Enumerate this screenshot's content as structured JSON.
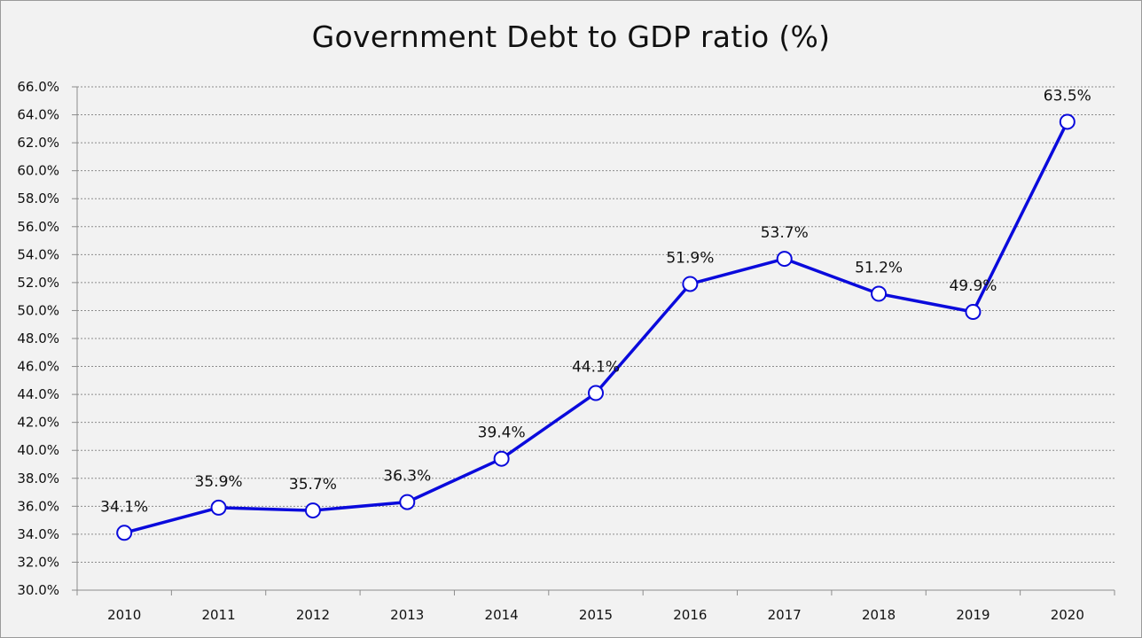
{
  "chart_data": {
    "type": "line",
    "title": "Government Debt to GDP ratio (%)",
    "xlabel": "",
    "ylabel": "",
    "categories": [
      "2010",
      "2011",
      "2012",
      "2013",
      "2014",
      "2015",
      "2016",
      "2017",
      "2018",
      "2019",
      "2020"
    ],
    "series": [
      {
        "values": [
          34.1,
          35.9,
          35.7,
          36.3,
          39.4,
          44.1,
          51.9,
          53.7,
          51.2,
          49.9,
          63.5
        ],
        "labels": [
          "34.1%",
          "35.9%",
          "35.7%",
          "36.3%",
          "39.4%",
          "44.1%",
          "51.9%",
          "53.7%",
          "51.2%",
          "49.9%",
          "63.5%"
        ]
      }
    ],
    "ylim": [
      30,
      66
    ],
    "ytick_step": 2,
    "ytick_labels": [
      "30.0%",
      "32.0%",
      "34.0%",
      "36.0%",
      "38.0%",
      "40.0%",
      "42.0%",
      "44.0%",
      "46.0%",
      "48.0%",
      "50.0%",
      "52.0%",
      "54.0%",
      "56.0%",
      "58.0%",
      "60.0%",
      "62.0%",
      "64.0%",
      "66.0%"
    ],
    "grid": true,
    "legend": "none",
    "colors": {
      "line": "#0a0adc",
      "marker_fill": "#ffffff",
      "grid": "#8c8c8c",
      "axis": "#8c8c8c",
      "background": "#f2f2f2"
    }
  }
}
